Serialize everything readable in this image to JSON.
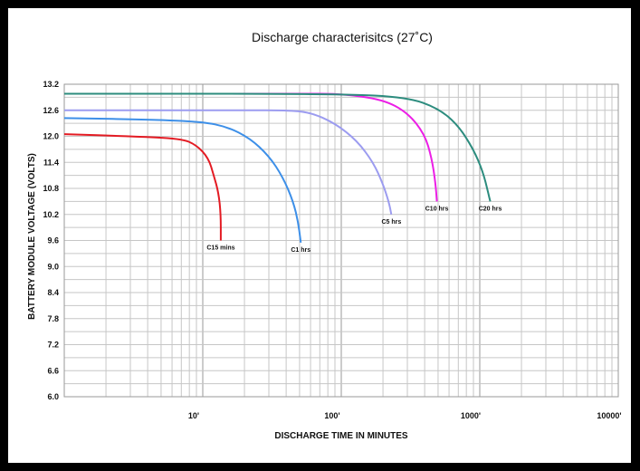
{
  "chart_data": {
    "type": "line",
    "title": "Discharge characterisitcs (27˚C)",
    "xlabel": "DISCHARGE TIME IN MINUTES",
    "ylabel": "BATTERY MODULE VOLTAGE (VOLTS)",
    "x_scale": "log",
    "xlim": [
      1,
      10000
    ],
    "ylim": [
      6.0,
      13.2
    ],
    "x_ticks": [
      {
        "value": 10,
        "label": "10'"
      },
      {
        "value": 100,
        "label": "100'"
      },
      {
        "value": 1000,
        "label": "1000'"
      },
      {
        "value": 10000,
        "label": "10000'"
      }
    ],
    "y_ticks": [
      {
        "value": 13.2,
        "label": "13.2"
      },
      {
        "value": 12.6,
        "label": "12.6"
      },
      {
        "value": 12.0,
        "label": "12.0"
      },
      {
        "value": 11.4,
        "label": "11.4"
      },
      {
        "value": 10.8,
        "label": "10.8"
      },
      {
        "value": 10.2,
        "label": "10.2"
      },
      {
        "value": 9.6,
        "label": "9.6"
      },
      {
        "value": 9.0,
        "label": "9.0"
      },
      {
        "value": 8.4,
        "label": "8.4"
      },
      {
        "value": 7.8,
        "label": "7.8"
      },
      {
        "value": 7.2,
        "label": "7.2"
      },
      {
        "value": 6.6,
        "label": "6.6"
      },
      {
        "value": 6.0,
        "label": "6.0"
      }
    ],
    "grid": true,
    "series": [
      {
        "name": "C15 mins",
        "color": "#e31b23",
        "x": [
          1,
          3,
          7,
          9,
          11,
          12,
          13,
          13.5,
          13.5
        ],
        "y": [
          12.05,
          12.0,
          11.95,
          11.8,
          11.5,
          11.1,
          10.7,
          10.2,
          9.6
        ]
      },
      {
        "name": "C1 hrs",
        "color": "#3d8fe8",
        "x": [
          1,
          5,
          10,
          15,
          22,
          30,
          38,
          45,
          49,
          51
        ],
        "y": [
          12.42,
          12.38,
          12.33,
          12.22,
          11.95,
          11.55,
          11.05,
          10.5,
          10.0,
          9.55
        ]
      },
      {
        "name": "C5 hrs",
        "color": "#9c9cf0",
        "x": [
          1,
          20,
          40,
          60,
          90,
          130,
          170,
          200,
          220,
          230
        ],
        "y": [
          12.6,
          12.6,
          12.6,
          12.55,
          12.3,
          11.9,
          11.4,
          10.9,
          10.5,
          10.2
        ]
      },
      {
        "name": "C10 hrs",
        "color": "#ec1fe6",
        "x": [
          1,
          50,
          100,
          200,
          300,
          400,
          450,
          480,
          490
        ],
        "y": [
          12.98,
          12.98,
          12.98,
          12.85,
          12.55,
          12.05,
          11.5,
          10.9,
          10.5
        ]
      },
      {
        "name": "C20 hrs",
        "color": "#2c8c7e",
        "x": [
          1,
          100,
          300,
          500,
          700,
          900,
          1050,
          1150,
          1190
        ],
        "y": [
          12.98,
          12.98,
          12.9,
          12.65,
          12.25,
          11.7,
          11.2,
          10.7,
          10.5
        ]
      }
    ],
    "annotations": [
      "C15 mins",
      "C1 hrs",
      "C5 hrs",
      "C10 hrs",
      "C20 hrs"
    ]
  }
}
